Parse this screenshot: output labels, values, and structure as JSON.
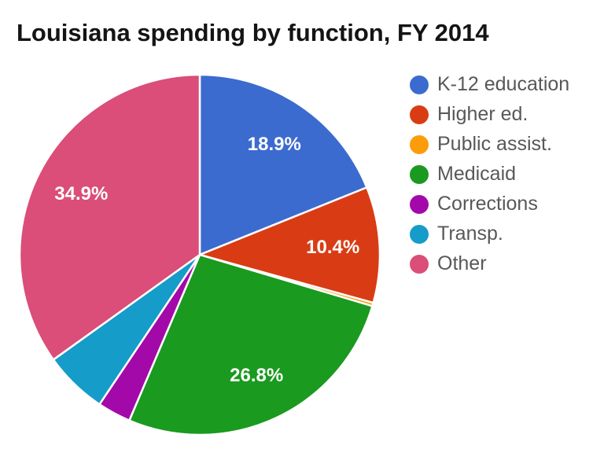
{
  "chart_data": {
    "type": "pie",
    "title": "Louisiana spending by function, FY 2014",
    "legend_position": "right",
    "start_angle_deg": 0,
    "direction": "clockwise",
    "background": "#ffffff",
    "slice_label_color": "#ffffff",
    "slice_border_color": "#ffffff",
    "legend_text_color": "#58585a",
    "slices": [
      {
        "label": "K-12 education",
        "value": 18.9,
        "pct_label": "18.9%",
        "color": "#3b6bcf"
      },
      {
        "label": "Higher ed.",
        "value": 10.4,
        "pct_label": "10.4%",
        "color": "#d93c14"
      },
      {
        "label": "Public assist.",
        "value": 0.3,
        "pct_label": "",
        "color": "#fb9c09"
      },
      {
        "label": "Medicaid",
        "value": 26.8,
        "pct_label": "26.8%",
        "color": "#1a9a1f"
      },
      {
        "label": "Corrections",
        "value": 3.0,
        "pct_label": "",
        "color": "#a309a9"
      },
      {
        "label": "Transp.",
        "value": 5.7,
        "pct_label": "",
        "color": "#169cc8"
      },
      {
        "label": "Other",
        "value": 34.9,
        "pct_label": "34.9%",
        "color": "#da4e79"
      }
    ]
  }
}
